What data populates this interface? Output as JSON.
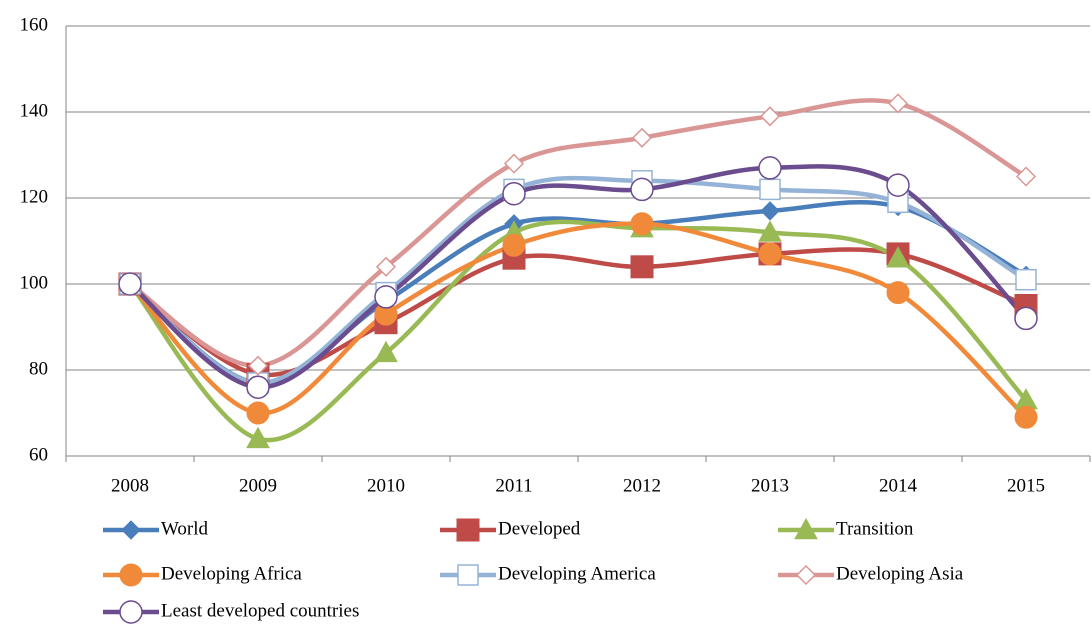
{
  "chart_data": {
    "type": "line",
    "smooth": true,
    "categories": [
      "2008",
      "2009",
      "2010",
      "2011",
      "2012",
      "2013",
      "2014",
      "2015"
    ],
    "ylim": [
      60,
      160
    ],
    "yticks": [
      60,
      80,
      100,
      120,
      140,
      160
    ],
    "grid": true,
    "series": [
      {
        "name": "World",
        "color": "#4a7ebb",
        "marker": "diamond",
        "values": [
          100,
          77,
          96,
          114,
          114,
          117,
          118,
          102
        ]
      },
      {
        "name": "Developed",
        "color": "#be4b48",
        "marker": "square",
        "values": [
          100,
          79,
          91,
          106,
          104,
          107,
          107,
          95
        ]
      },
      {
        "name": "Transition",
        "color": "#98b954",
        "marker": "triangle",
        "values": [
          100,
          64,
          84,
          112,
          113,
          112,
          106,
          73
        ]
      },
      {
        "name": "Developing Africa",
        "color": "#f08a3a",
        "marker": "circle",
        "values": [
          100,
          70,
          93,
          109,
          114,
          107,
          98,
          69
        ]
      },
      {
        "name": "Developing America",
        "color": "#95b3d7",
        "marker": "square-open",
        "values": [
          100,
          77,
          98,
          122,
          124,
          122,
          119,
          101
        ]
      },
      {
        "name": "Developing Asia",
        "color": "#d99694",
        "marker": "diamond-open",
        "values": [
          100,
          81,
          104,
          128,
          134,
          139,
          142,
          125
        ]
      },
      {
        "name": "Least developed countries",
        "color": "#6a4c8f",
        "marker": "circle-open",
        "values": [
          100,
          76,
          97,
          121,
          122,
          127,
          123,
          92
        ]
      }
    ]
  }
}
